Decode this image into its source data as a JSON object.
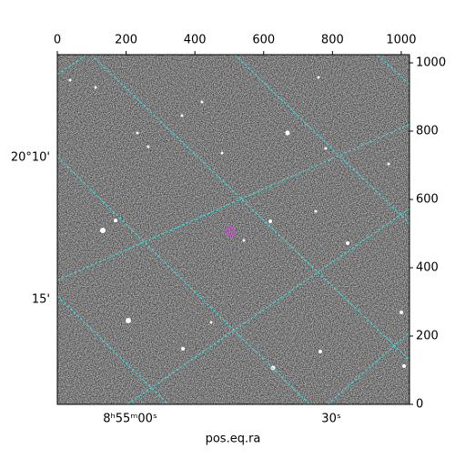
{
  "chart_data": {
    "type": "image",
    "xlabel": "pos.eq.ra",
    "xlim": [
      0,
      1024
    ],
    "ylim": [
      0,
      1024
    ],
    "xticks": [
      0,
      200,
      400,
      600,
      800,
      1000
    ],
    "yticks": [
      0,
      200,
      400,
      600,
      800,
      1000
    ],
    "ra_labels": [
      "8ʰ55ᵐ00ˢ",
      "30ˢ"
    ],
    "dec_labels": [
      "20°10'",
      "15'"
    ]
  }
}
